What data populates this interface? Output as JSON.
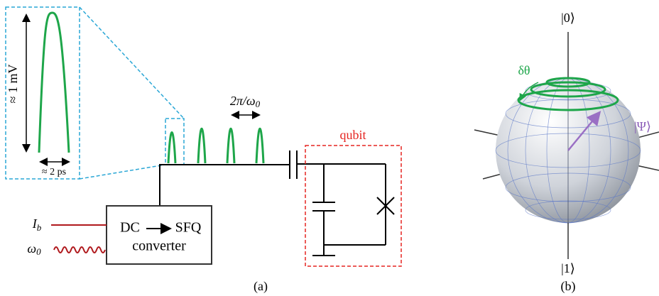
{
  "zoom": {
    "amplitude_label": "≈ 1 mV",
    "width_label": "≈ 2 ps"
  },
  "period_label": {
    "text": "2π/ω",
    "subscript": "0"
  },
  "qubit_label": "qubit",
  "bias_current": {
    "symbol": "I",
    "subscript": "b"
  },
  "drive_frequency": {
    "symbol": "ω",
    "subscript": "0"
  },
  "converter": {
    "line1_left": "DC",
    "line1_right": "SFQ",
    "line2": "converter"
  },
  "panel_a_caption": "(a)",
  "bloch": {
    "angle_label": "δθ",
    "state_label": "|Ψ⟩",
    "top_label": "|0⟩",
    "bottom_label": "|1⟩",
    "caption": "(b)"
  }
}
